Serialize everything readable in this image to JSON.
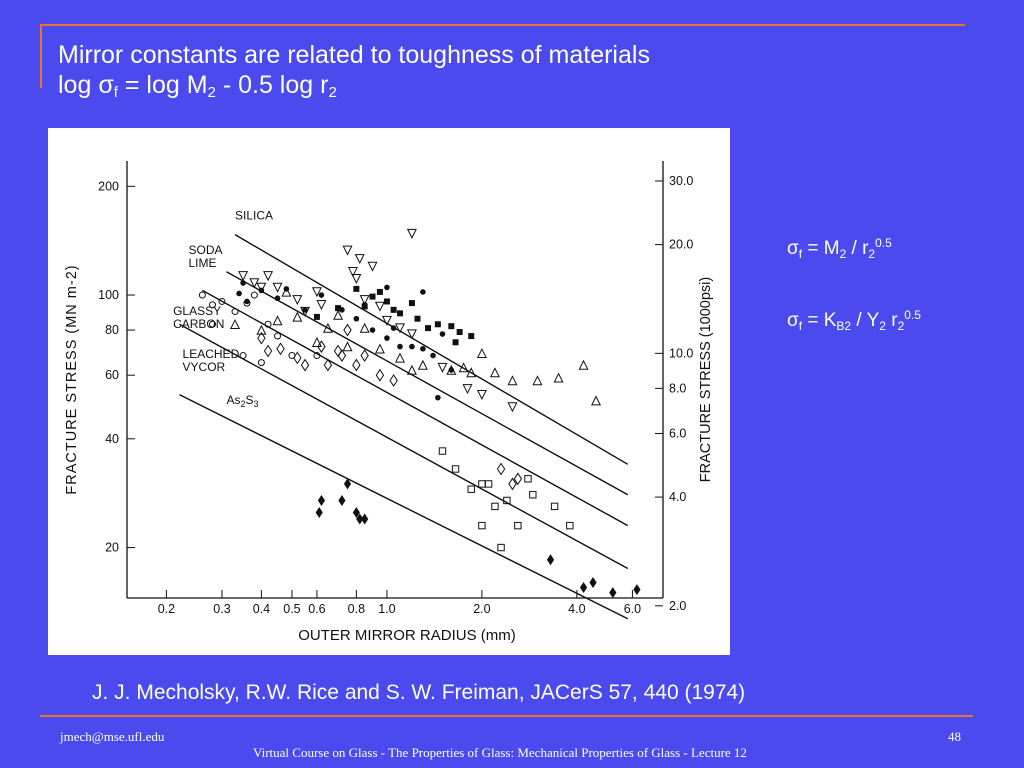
{
  "slide": {
    "title_line1": "Mirror constants are related to toughness of materials",
    "title_line2": {
      "p1": "log ",
      "sigma": "σ",
      "sub_f": "f",
      "p2": " = log M",
      "sub_2a": "2",
      "p3": "  - 0.5 log  r",
      "sub_2b": "2"
    },
    "eq1": {
      "sigma": "σ",
      "sub_f": "f",
      "p1": " = M",
      "sub_2": "2",
      "p2": " / r",
      "sub_2b": "2",
      "sup": "0.5"
    },
    "eq2": {
      "sigma": "σ",
      "sub_f": "f",
      "p1": " = K",
      "sub_b2": "B2",
      "p2": " / Y",
      "sub_2": "2",
      "p3": " r",
      "sub_2b": "2",
      "sup": "0.5"
    },
    "citation": "J. J. Mecholsky, R.W. Rice and S. W. Freiman, JACerS 57, 440 (1974)",
    "footer_left": "jmech@mse.ufl.edu",
    "footer_center": "Virtual Course on Glass - The Properties of Glass:    Mechanical Properties of Glass - Lecture 12",
    "page_number": "48"
  },
  "colors": {
    "background": "#4a4aef",
    "accent": "#e8742f",
    "text": "#ffffff",
    "chart_bg": "#ffffff",
    "ink": "#111111"
  },
  "chart_data": {
    "type": "scatter",
    "xlabel": "OUTER MIRROR RADIUS (mm)",
    "ylabel_left": "FRACTURE STRESS (MN m-2)",
    "ylabel_right": "FRACTURE STRESS (1000psi)",
    "x_scale": "log",
    "y_scale": "log",
    "xlim": [
      0.15,
      7.5
    ],
    "ylim": [
      14.5,
      235
    ],
    "x_ticks": [
      {
        "v": 0.2,
        "label": "0.2"
      },
      {
        "v": 0.3,
        "label": "0.3"
      },
      {
        "v": 0.4,
        "label": "0.4"
      },
      {
        "v": 0.5,
        "label": "0.5"
      },
      {
        "v": 0.6,
        "label": "0.6"
      },
      {
        "v": 0.8,
        "label": "0.8"
      },
      {
        "v": 1.0,
        "label": "1.0"
      },
      {
        "v": 2.0,
        "label": "2.0"
      },
      {
        "v": 4.0,
        "label": "4.0"
      },
      {
        "v": 6.0,
        "label": "6.0"
      }
    ],
    "y_ticks_left": [
      {
        "v": 20,
        "label": "20"
      },
      {
        "v": 40,
        "label": "40"
      },
      {
        "v": 60,
        "label": "60"
      },
      {
        "v": 80,
        "label": "80"
      },
      {
        "v": 100,
        "label": "100"
      },
      {
        "v": 200,
        "label": "200"
      }
    ],
    "y_ticks_right": [
      {
        "v": 2.0,
        "label": "2.0"
      },
      {
        "v": 4.0,
        "label": "4.0"
      },
      {
        "v": 6.0,
        "label": "6.0"
      },
      {
        "v": 8.0,
        "label": "8.0"
      },
      {
        "v": 10.0,
        "label": "10.0"
      },
      {
        "v": 20.0,
        "label": "20.0"
      },
      {
        "v": 30.0,
        "label": "30.0"
      }
    ],
    "psi_per_mpa": 0.145,
    "series": [
      {
        "name": "SILICA",
        "marker": "triangle-down",
        "line": [
          [
            0.33,
            147
          ],
          [
            5.8,
            34
          ]
        ],
        "label_at": [
          0.33,
          162
        ],
        "points": [
          [
            0.35,
            113
          ],
          [
            0.38,
            108
          ],
          [
            0.4,
            105
          ],
          [
            0.42,
            113
          ],
          [
            0.45,
            105
          ],
          [
            0.52,
            97
          ],
          [
            0.55,
            90
          ],
          [
            0.62,
            94
          ],
          [
            0.6,
            102
          ],
          [
            0.75,
            133
          ],
          [
            0.78,
            116
          ],
          [
            0.8,
            111
          ],
          [
            0.85,
            97
          ],
          [
            0.9,
            120
          ],
          [
            0.95,
            93
          ],
          [
            1.0,
            85
          ],
          [
            1.1,
            81
          ],
          [
            1.2,
            78
          ],
          [
            1.5,
            63
          ],
          [
            1.8,
            55
          ],
          [
            2.0,
            53
          ],
          [
            2.5,
            49
          ],
          [
            1.2,
            148
          ],
          [
            0.82,
            126
          ]
        ]
      },
      {
        "name": "SODA LIME",
        "marker": "filled-circle",
        "line": [
          [
            0.31,
            116
          ],
          [
            5.8,
            28
          ]
        ],
        "label_at": [
          0.235,
          130
        ],
        "points": [
          [
            0.34,
            101
          ],
          [
            0.36,
            96
          ],
          [
            0.35,
            108
          ],
          [
            0.4,
            103
          ],
          [
            0.45,
            98
          ],
          [
            0.48,
            104
          ],
          [
            0.55,
            91
          ],
          [
            0.62,
            100
          ],
          [
            0.72,
            91
          ],
          [
            0.8,
            86
          ],
          [
            0.85,
            94
          ],
          [
            0.9,
            80
          ],
          [
            1.0,
            76
          ],
          [
            1.05,
            81
          ],
          [
            1.2,
            72
          ],
          [
            1.4,
            68
          ],
          [
            1.5,
            78
          ],
          [
            1.3,
            71
          ],
          [
            1.45,
            52
          ],
          [
            1.0,
            105
          ],
          [
            1.3,
            102
          ],
          [
            1.1,
            72
          ],
          [
            1.6,
            62
          ]
        ]
      },
      {
        "name": "GLASSY CARBON",
        "marker": "filled-square",
        "line": [
          [
            0.26,
            103
          ],
          [
            5.8,
            23
          ]
        ],
        "label_at": [
          0.21,
          88
        ],
        "points": [
          [
            0.6,
            87
          ],
          [
            0.8,
            104
          ],
          [
            0.85,
            93
          ],
          [
            0.9,
            99
          ],
          [
            0.95,
            102
          ],
          [
            1.0,
            96
          ],
          [
            1.05,
            91
          ],
          [
            1.1,
            89
          ],
          [
            1.2,
            95
          ],
          [
            1.25,
            86
          ],
          [
            1.35,
            81
          ],
          [
            1.45,
            83
          ],
          [
            1.6,
            82
          ],
          [
            1.65,
            74
          ],
          [
            1.7,
            79
          ],
          [
            1.85,
            77
          ],
          [
            0.7,
            92
          ]
        ]
      },
      {
        "name": "LEACHED VYCOR",
        "marker": "triangle-up",
        "line": [
          [
            0.22,
            83
          ],
          [
            5.8,
            17.5
          ]
        ],
        "label_at": [
          0.225,
          67
        ],
        "points": [
          [
            0.33,
            83
          ],
          [
            0.45,
            85
          ],
          [
            0.4,
            80
          ],
          [
            0.48,
            102
          ],
          [
            0.52,
            87
          ],
          [
            0.6,
            74
          ],
          [
            0.65,
            81
          ],
          [
            0.7,
            88
          ],
          [
            0.75,
            72
          ],
          [
            0.85,
            81
          ],
          [
            0.95,
            71
          ],
          [
            1.1,
            67
          ],
          [
            1.2,
            62
          ],
          [
            1.3,
            64
          ],
          [
            1.6,
            62
          ],
          [
            1.75,
            63
          ],
          [
            1.85,
            61
          ],
          [
            2.0,
            69
          ],
          [
            2.2,
            61
          ],
          [
            2.5,
            58
          ],
          [
            3.0,
            58
          ],
          [
            3.5,
            59
          ],
          [
            4.2,
            64
          ],
          [
            4.6,
            51
          ]
        ]
      },
      {
        "name": "As2S3",
        "marker": "open-circle",
        "line": [
          [
            0.22,
            53
          ],
          [
            5.8,
            12.7
          ]
        ],
        "label_at": [
          0.31,
          50
        ],
        "points": [
          [
            0.26,
            100
          ],
          [
            0.28,
            94
          ],
          [
            0.3,
            96
          ],
          [
            0.33,
            90
          ],
          [
            0.36,
            95
          ],
          [
            0.38,
            100
          ],
          [
            0.42,
            83
          ],
          [
            0.45,
            77
          ],
          [
            0.5,
            68
          ],
          [
            0.6,
            68
          ],
          [
            0.35,
            68
          ],
          [
            0.4,
            65
          ],
          [
            0.28,
            83
          ]
        ]
      },
      {
        "name": "",
        "marker": "open-diamond",
        "points": [
          [
            0.4,
            76
          ],
          [
            0.42,
            70
          ],
          [
            0.46,
            71
          ],
          [
            0.52,
            67
          ],
          [
            0.55,
            64
          ],
          [
            0.62,
            72
          ],
          [
            0.65,
            64
          ],
          [
            0.7,
            70
          ],
          [
            0.72,
            68
          ],
          [
            0.75,
            80
          ],
          [
            0.8,
            64
          ],
          [
            0.85,
            68
          ],
          [
            0.95,
            60
          ],
          [
            1.05,
            58
          ],
          [
            2.3,
            33
          ],
          [
            2.5,
            30
          ],
          [
            2.6,
            31
          ]
        ]
      },
      {
        "name": "",
        "marker": "open-square",
        "points": [
          [
            1.5,
            37
          ],
          [
            1.65,
            33
          ],
          [
            1.85,
            29
          ],
          [
            2.0,
            30
          ],
          [
            2.1,
            30
          ],
          [
            2.2,
            26
          ],
          [
            2.4,
            27
          ],
          [
            2.9,
            28
          ],
          [
            3.4,
            26
          ],
          [
            2.3,
            20
          ],
          [
            2.0,
            23
          ],
          [
            2.6,
            23
          ],
          [
            2.8,
            31
          ],
          [
            3.8,
            23
          ]
        ]
      },
      {
        "name": "",
        "marker": "filled-diamond",
        "points": [
          [
            0.61,
            25
          ],
          [
            0.62,
            27
          ],
          [
            0.72,
            27
          ],
          [
            0.75,
            30
          ],
          [
            0.8,
            25
          ],
          [
            0.82,
            24
          ],
          [
            0.85,
            24
          ],
          [
            3.3,
            18.5
          ],
          [
            4.2,
            15.5
          ],
          [
            4.5,
            16
          ],
          [
            5.2,
            15
          ],
          [
            6.2,
            15.3
          ]
        ]
      }
    ]
  }
}
